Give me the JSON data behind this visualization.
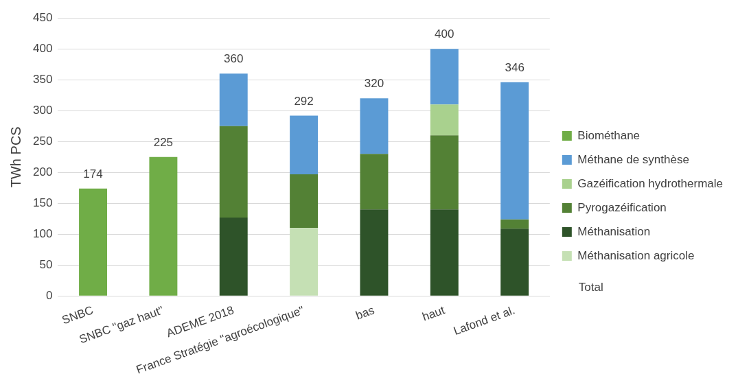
{
  "chart_data": {
    "type": "bar",
    "stacked": true,
    "ylabel": "TWh PCS",
    "categories": [
      "SNBC",
      "SNBC \"gaz haut\"",
      "ADEME 2018",
      "France Stratégie \"agroécologique\"",
      "bas",
      "haut",
      "Lafond et al."
    ],
    "series": [
      {
        "name": "Méthanisation agricole",
        "color": "#c5e0b4",
        "values": [
          null,
          null,
          null,
          110,
          null,
          null,
          null
        ]
      },
      {
        "name": "Méthanisation",
        "color": "#2e5329",
        "values": [
          null,
          null,
          127,
          null,
          140,
          140,
          109
        ]
      },
      {
        "name": "Pyrogazéification",
        "color": "#538135",
        "values": [
          null,
          null,
          148,
          87,
          90,
          120,
          15
        ]
      },
      {
        "name": "Gazéification hydrothermale",
        "color": "#a9d18e",
        "values": [
          null,
          null,
          null,
          null,
          null,
          50,
          null
        ]
      },
      {
        "name": "Méthane de synthèse",
        "color": "#5b9bd5",
        "values": [
          null,
          null,
          85,
          95,
          90,
          90,
          222
        ]
      },
      {
        "name": "Biométhane",
        "color": "#70ad47",
        "values": [
          174,
          225,
          null,
          null,
          null,
          null,
          null
        ]
      }
    ],
    "totals": [
      "174",
      "225",
      "360",
      "292",
      "320",
      "400",
      "346"
    ],
    "annotations": [
      "Total"
    ],
    "ylim": [
      0,
      450
    ],
    "yticks": [
      0,
      50,
      100,
      150,
      200,
      250,
      300,
      350,
      400,
      450
    ],
    "grid": "y",
    "legend": "right"
  }
}
